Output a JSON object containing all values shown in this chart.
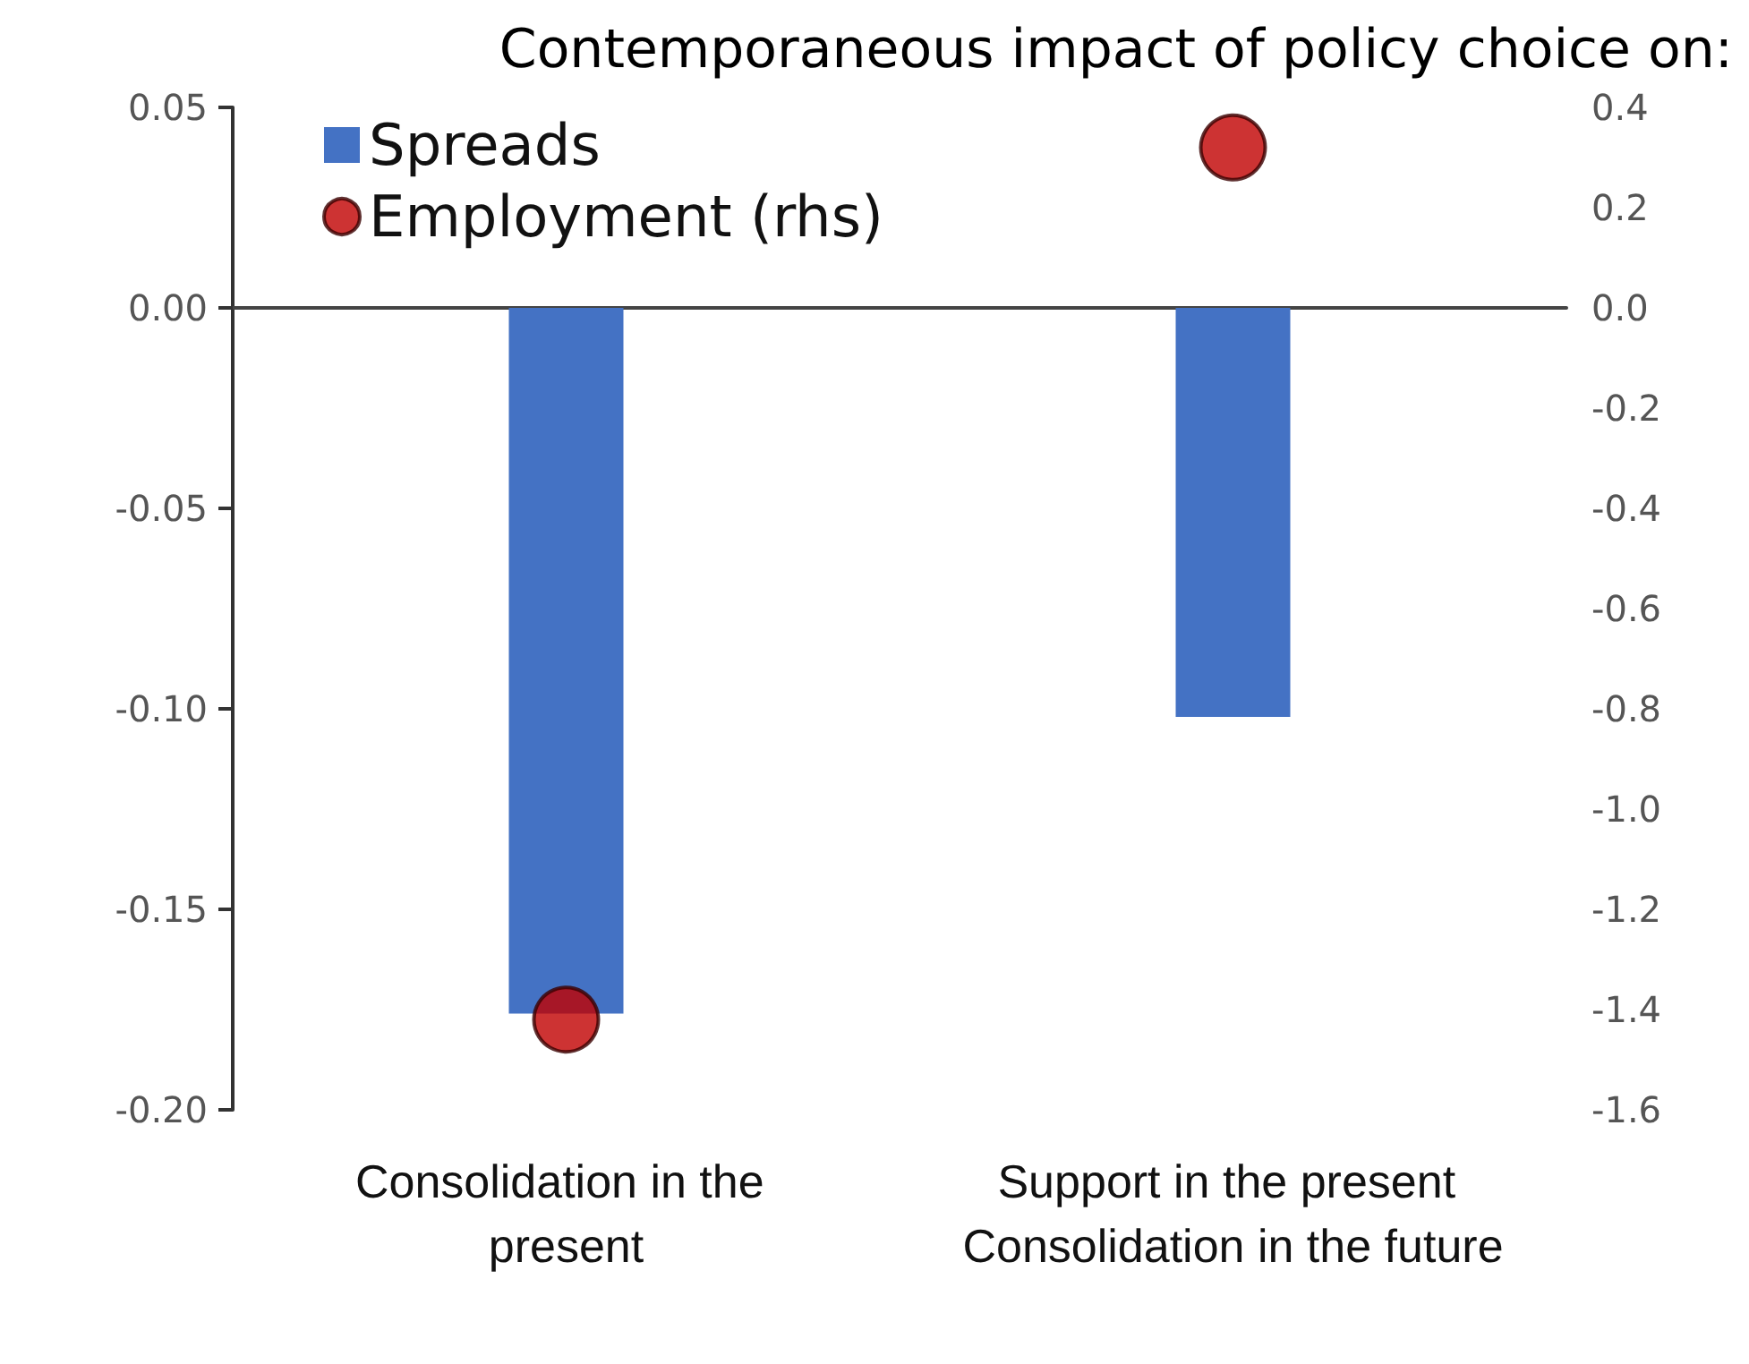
{
  "chart_data": {
    "type": "bar",
    "title": "Contemporaneous impact of policy choice on:",
    "categories": [
      "Consolidation in the present",
      "Support in the present Consolidation in the future"
    ],
    "series": [
      {
        "name": "Spreads",
        "color": "#4472c4",
        "values": [
          -0.176,
          -0.102
        ]
      },
      {
        "name": "Employment (rhs)",
        "type": "scatter",
        "axis": "y2",
        "color": "#c00000",
        "x": [
          "Consolidation in the present",
          "Support in the present Consolidation in the future"
        ],
        "values": [
          -1.42,
          0.32
        ]
      }
    ],
    "ylim": [
      -0.2,
      0.05
    ],
    "yticks": [
      {
        "value": -0.2,
        "label": "-0.20"
      },
      {
        "value": -0.15,
        "label": "-0.15"
      },
      {
        "value": -0.1,
        "label": "-0.10"
      },
      {
        "value": -0.05,
        "label": "-0.05"
      },
      {
        "value": 0,
        "label": "0.00"
      },
      0.05
    ],
    "y2lim": [
      -1.6,
      0.4
    ],
    "y2ticks": [
      {
        "value": -1.6,
        "label": "-1.6"
      },
      {
        "value": -1.4,
        "label": "-1.4"
      },
      {
        "value": -1.2,
        "label": "-1.2"
      },
      {
        "value": -1,
        "label": "-1.0"
      },
      {
        "value": -0.8,
        "label": "-0.8"
      },
      {
        "value": -0.6,
        "label": "-0.6"
      },
      {
        "value": -0.4,
        "label": "-0.4"
      },
      {
        "value": -0.2,
        "label": "-0.2"
      },
      {
        "value": 0,
        "label": "0.0"
      },
      0.2,
      0.4
    ],
    "marker": "circle",
    "legend": "top left"
  }
}
